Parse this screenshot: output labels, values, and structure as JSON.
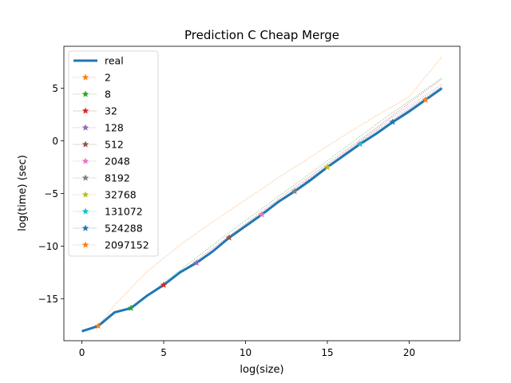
{
  "chart_data": {
    "type": "line",
    "title": "Prediction C Cheap Merge",
    "xlabel": "log(size)",
    "ylabel": "log(time) (sec)",
    "xlim": [
      -1.1,
      23.1
    ],
    "ylim": [
      -19.0,
      9.0
    ],
    "xticks": [
      0,
      5,
      10,
      15,
      20
    ],
    "yticks": [
      -15,
      -10,
      -5,
      0,
      5
    ],
    "grid": false,
    "legend_position": "top-left",
    "real": {
      "name": "real",
      "color": "#1f77b4",
      "x": [
        0,
        1,
        2,
        3,
        4,
        5,
        6,
        7,
        8,
        9,
        10,
        11,
        12,
        13,
        14,
        15,
        16,
        17,
        18,
        19,
        20,
        21,
        22
      ],
      "y": [
        -18.1,
        -17.6,
        -16.3,
        -15.9,
        -14.7,
        -13.7,
        -12.5,
        -11.6,
        -10.5,
        -9.2,
        -8.1,
        -7.0,
        -5.8,
        -4.8,
        -3.7,
        -2.5,
        -1.4,
        -0.3,
        0.7,
        1.8,
        2.8,
        3.9,
        5.0
      ]
    },
    "series": [
      {
        "name": "2",
        "color": "#ff7f0e",
        "x": [
          1,
          2,
          4,
          6,
          8,
          10,
          12,
          14,
          16,
          18,
          20,
          22
        ],
        "y": [
          -17.6,
          -15.6,
          -12.4,
          -9.9,
          -7.7,
          -5.6,
          -3.5,
          -1.5,
          0.5,
          2.4,
          4.2,
          8.0
        ],
        "marker": [
          1,
          -17.6
        ]
      },
      {
        "name": "8",
        "color": "#2ca02c",
        "x": [
          3,
          6,
          9,
          12,
          15,
          18,
          22
        ],
        "y": [
          -15.9,
          -12.3,
          -8.7,
          -5.3,
          -1.9,
          1.6,
          6.0
        ],
        "marker": [
          3,
          -15.9
        ]
      },
      {
        "name": "32",
        "color": "#d62728",
        "x": [
          5,
          8,
          11,
          14,
          17,
          20,
          22
        ],
        "y": [
          -13.7,
          -10.2,
          -6.7,
          -3.3,
          0.1,
          3.6,
          5.9
        ],
        "marker": [
          5,
          -13.7
        ]
      },
      {
        "name": "128",
        "color": "#9467bd",
        "x": [
          7,
          10,
          13,
          16,
          19,
          22
        ],
        "y": [
          -11.6,
          -8.0,
          -4.6,
          -1.2,
          2.3,
          5.4
        ],
        "marker": [
          7,
          -11.6
        ]
      },
      {
        "name": "512",
        "color": "#8c564b",
        "x": [
          9,
          12,
          15,
          18,
          22
        ],
        "y": [
          -9.2,
          -5.8,
          -2.4,
          1.0,
          5.2
        ],
        "marker": [
          9,
          -9.2
        ]
      },
      {
        "name": "2048",
        "color": "#e377c2",
        "x": [
          11,
          14,
          17,
          20,
          22
        ],
        "y": [
          -7.0,
          -3.6,
          -0.3,
          3.0,
          5.1
        ],
        "marker": [
          11,
          -7.0
        ]
      },
      {
        "name": "8192",
        "color": "#7f7f7f",
        "x": [
          13,
          16,
          19,
          22
        ],
        "y": [
          -4.8,
          -1.4,
          1.9,
          5.0
        ],
        "marker": [
          13,
          -4.8
        ]
      },
      {
        "name": "32768",
        "color": "#bcbd22",
        "x": [
          15,
          18,
          22
        ],
        "y": [
          -2.5,
          0.8,
          5.0
        ],
        "marker": [
          15,
          -2.5
        ]
      },
      {
        "name": "131072",
        "color": "#17becf",
        "x": [
          17,
          20,
          22
        ],
        "y": [
          -0.3,
          2.9,
          5.0
        ],
        "marker": [
          17,
          -0.3
        ]
      },
      {
        "name": "524288",
        "color": "#1f77b4",
        "x": [
          19,
          22
        ],
        "y": [
          1.8,
          5.0
        ],
        "marker": [
          19,
          1.8
        ]
      },
      {
        "name": "2097152",
        "color": "#ff7f0e",
        "x": [
          21,
          22
        ],
        "y": [
          3.9,
          5.0
        ],
        "marker": [
          21,
          3.9
        ]
      }
    ]
  }
}
